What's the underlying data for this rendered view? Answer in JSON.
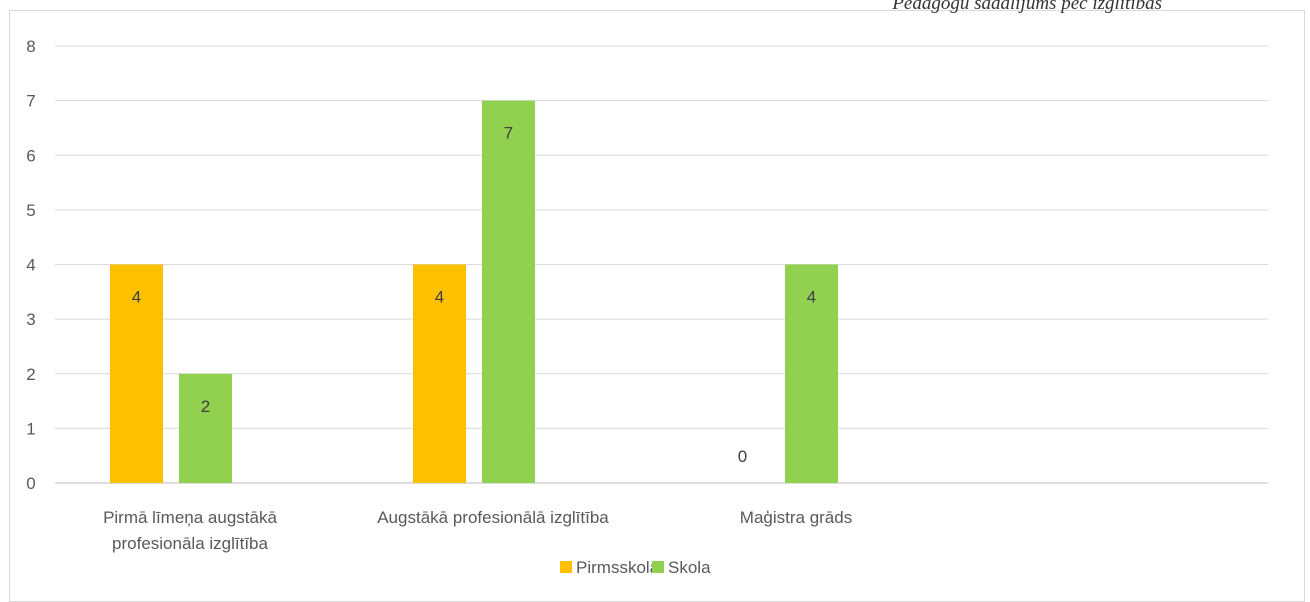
{
  "caption": "Pedagogu sadalījums pēc izglītības",
  "chart_data": {
    "type": "bar",
    "categories": [
      [
        "Pirmā līmeņa augstākā",
        "profesionāla izglītība"
      ],
      [
        "Augstākā profesionālā izglītība"
      ],
      [
        "Maģistra grāds"
      ]
    ],
    "series": [
      {
        "name": "Pirmsskola",
        "color": "#ffc000",
        "values": [
          4,
          4,
          0
        ]
      },
      {
        "name": "Skola",
        "color": "#92d050",
        "values": [
          2,
          7,
          4
        ]
      }
    ],
    "ylim": [
      0,
      8
    ],
    "yticks": [
      0,
      1,
      2,
      3,
      4,
      5,
      6,
      7,
      8
    ],
    "grid": true,
    "legend": "bottom",
    "data_labels": true
  }
}
